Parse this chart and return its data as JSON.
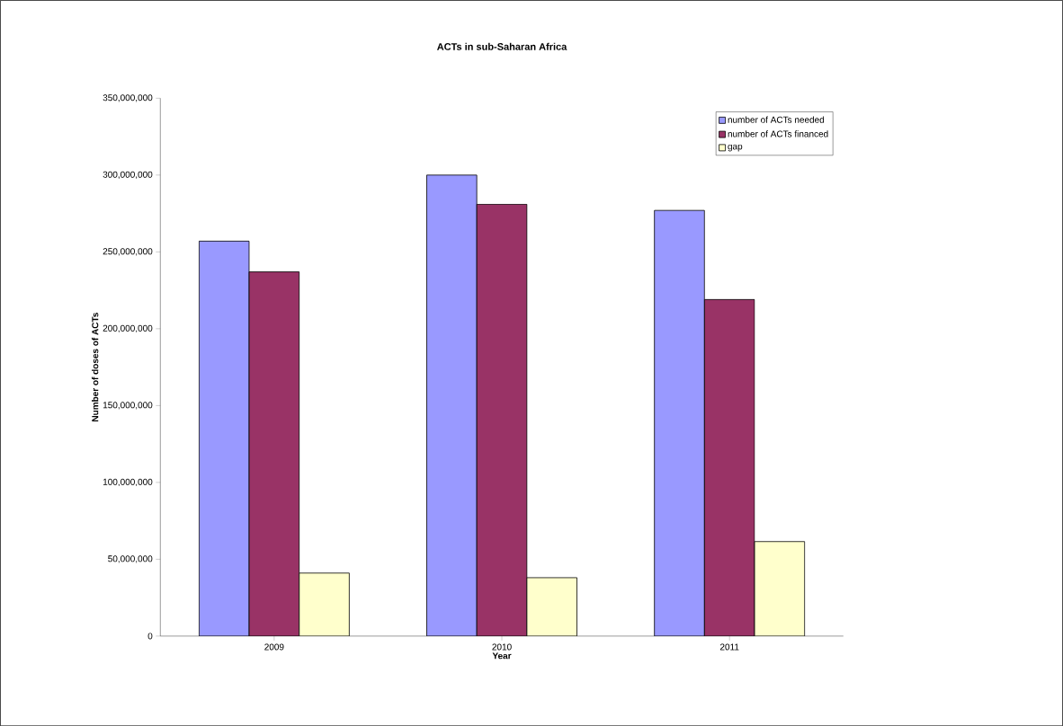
{
  "chart_data": {
    "type": "bar",
    "title": "ACTs in sub-Saharan Africa",
    "xlabel": "Year",
    "ylabel": "Number of doses of ACTs",
    "categories": [
      "2009",
      "2010",
      "2011"
    ],
    "series": [
      {
        "name": "number of ACTs needed",
        "color": "#9999ff",
        "values": [
          257000000,
          300000000,
          277000000
        ]
      },
      {
        "name": "number of ACTs financed",
        "color": "#993366",
        "values": [
          237000000,
          281000000,
          219000000
        ]
      },
      {
        "name": "gap",
        "color": "#ffffcc",
        "values": [
          41000000,
          38000000,
          61500000
        ]
      }
    ],
    "ylim": [
      0,
      350000000
    ],
    "yticks": [
      {
        "value": 0,
        "label": "0"
      },
      {
        "value": 50000000,
        "label": "50,000,000"
      },
      {
        "value": 100000000,
        "label": "100,000,000"
      },
      {
        "value": 150000000,
        "label": "150,000,000"
      },
      {
        "value": 200000000,
        "label": "200,000,000"
      },
      {
        "value": 250000000,
        "label": "250,000,000"
      },
      {
        "value": 300000000,
        "label": "300,000,000"
      },
      {
        "value": 350000000,
        "label": "350,000,000"
      }
    ],
    "legend": "top right",
    "grid": false
  }
}
